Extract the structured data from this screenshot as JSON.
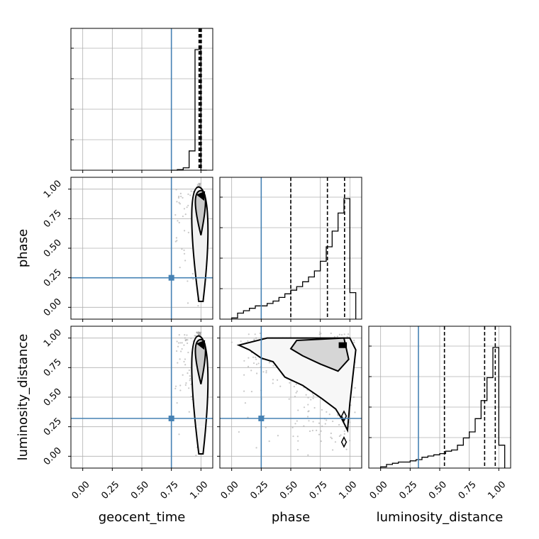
{
  "chart_data": {
    "type": "scatter",
    "plot_kind": "corner",
    "parameters": [
      "geocent_time",
      "phase",
      "luminosity_distance"
    ],
    "truths": {
      "geocent_time": 0.75,
      "phase": 0.25,
      "luminosity_distance": 0.32
    },
    "axis_range": [
      -0.1,
      1.1
    ],
    "tick_values": [
      0.0,
      0.25,
      0.5,
      0.75,
      1.0
    ],
    "tick_labels": [
      "0.00",
      "0.25",
      "0.50",
      "0.75",
      "1.00"
    ],
    "grid": true,
    "colors": {
      "truth": "#4682b4",
      "hist": "#000000",
      "scatter": "#9a9a9a",
      "contour": "#000000"
    },
    "quantiles": {
      "geocent_time": [
        0.988,
        0.995,
        0.999
      ],
      "phase": [
        0.5,
        0.81,
        0.955
      ],
      "luminosity_distance": [
        0.54,
        0.88,
        0.97
      ]
    },
    "histograms": {
      "geocent_time": {
        "bin_edges": [
          0.75,
          0.8,
          0.85,
          0.9,
          0.95,
          1.0,
          1.05
        ],
        "counts": [
          0.0,
          0.005,
          0.02,
          0.16,
          1.0,
          0.0
        ]
      },
      "phase": {
        "bin_edges": [
          0.0,
          0.05,
          0.1,
          0.15,
          0.2,
          0.25,
          0.3,
          0.35,
          0.4,
          0.45,
          0.5,
          0.55,
          0.6,
          0.65,
          0.7,
          0.75,
          0.8,
          0.85,
          0.9,
          0.95,
          1.0,
          1.05
        ],
        "counts": [
          0.01,
          0.05,
          0.07,
          0.09,
          0.11,
          0.11,
          0.13,
          0.15,
          0.18,
          0.21,
          0.24,
          0.27,
          0.31,
          0.35,
          0.4,
          0.48,
          0.6,
          0.73,
          0.88,
          1.0,
          0.22
        ]
      },
      "luminosity_distance": {
        "bin_edges": [
          0.0,
          0.05,
          0.1,
          0.15,
          0.2,
          0.25,
          0.3,
          0.35,
          0.4,
          0.45,
          0.5,
          0.55,
          0.6,
          0.65,
          0.7,
          0.75,
          0.8,
          0.85,
          0.9,
          0.95,
          1.0,
          1.05
        ],
        "counts": [
          0.01,
          0.03,
          0.04,
          0.05,
          0.05,
          0.06,
          0.07,
          0.09,
          0.1,
          0.11,
          0.12,
          0.14,
          0.15,
          0.19,
          0.25,
          0.3,
          0.41,
          0.56,
          0.75,
          1.0,
          0.19
        ]
      }
    }
  }
}
